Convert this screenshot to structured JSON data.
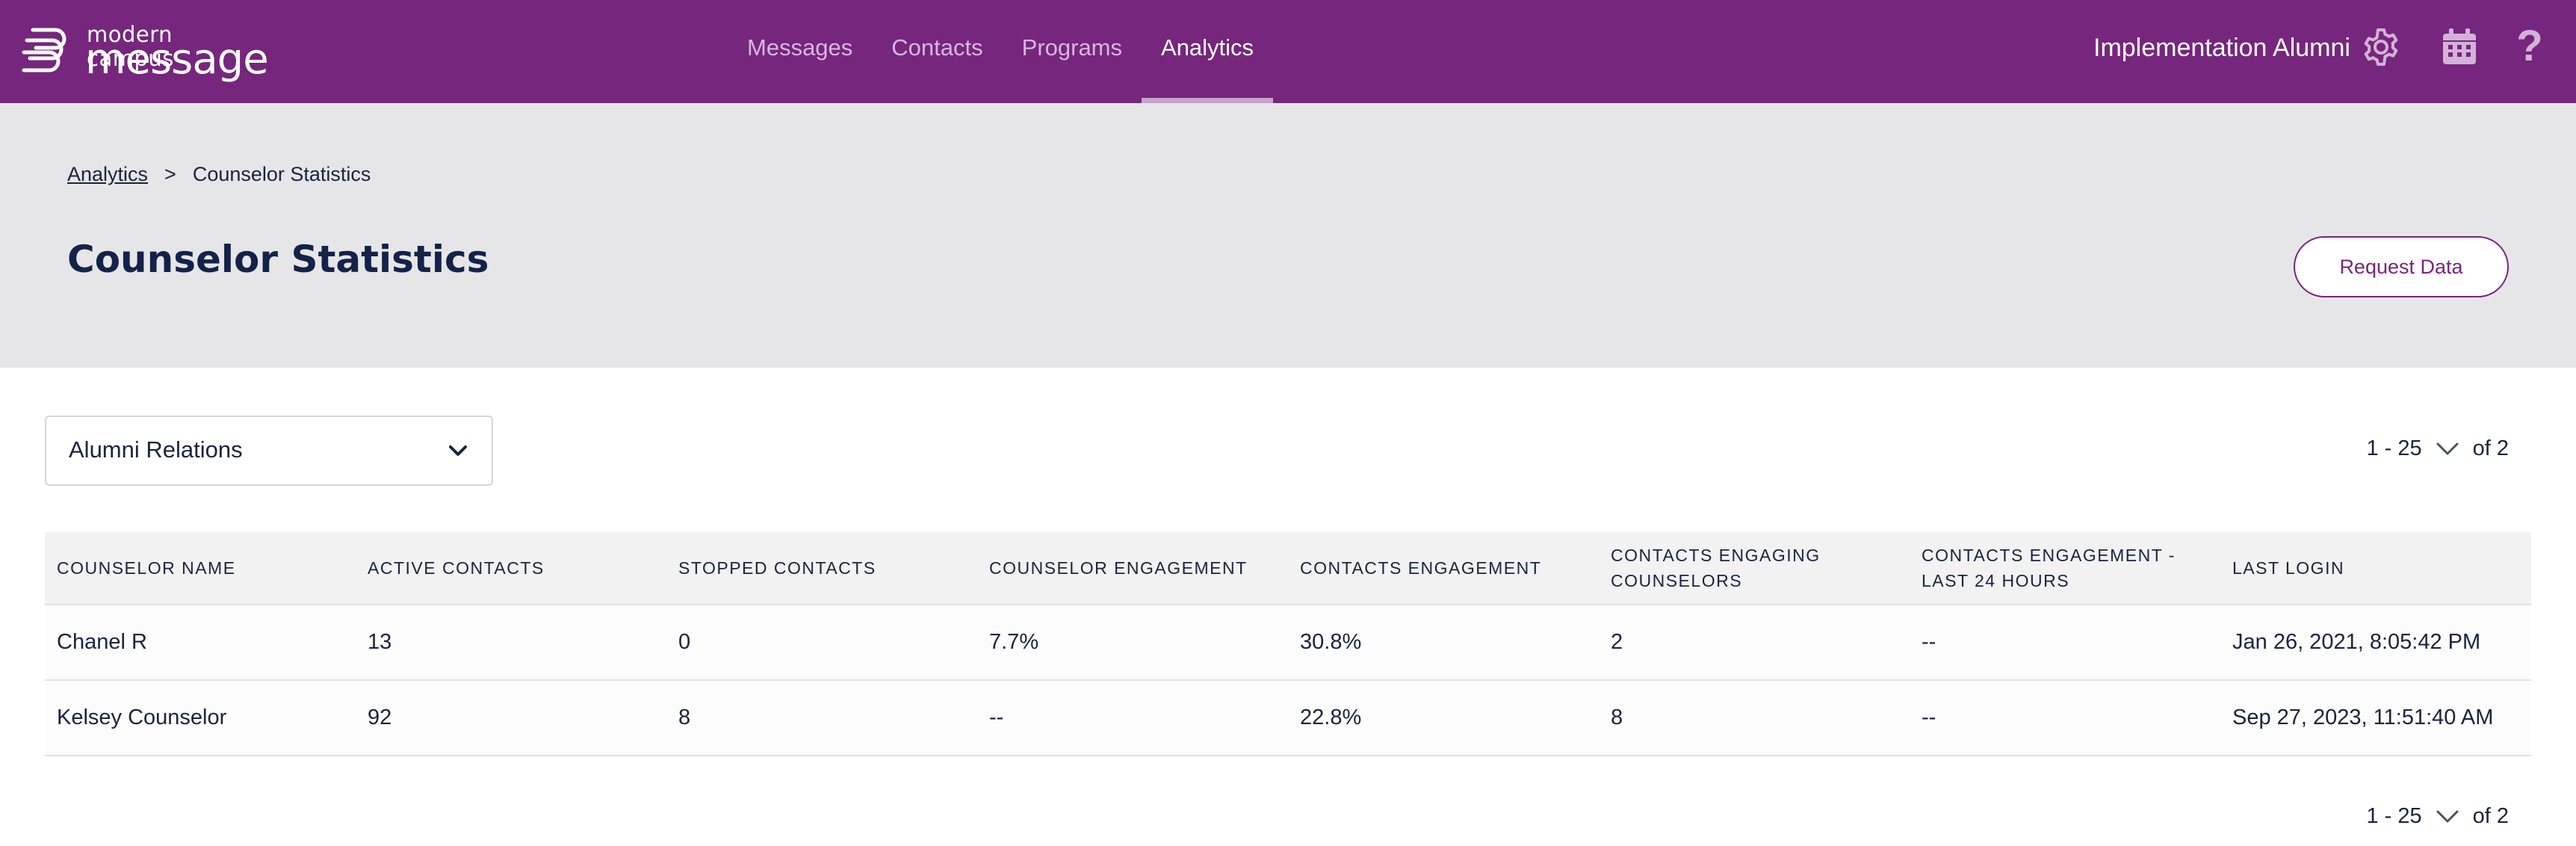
{
  "brand": {
    "line1": "modern campus",
    "line2": "message"
  },
  "nav": {
    "items": [
      {
        "label": "Messages"
      },
      {
        "label": "Contacts"
      },
      {
        "label": "Programs"
      },
      {
        "label": "Analytics",
        "active": true
      }
    ]
  },
  "header": {
    "org_name": "Implementation Alumni",
    "icons": [
      "gear-icon",
      "calendar-icon",
      "help-icon"
    ],
    "help_glyph": "?"
  },
  "breadcrumb": {
    "parent": "Analytics",
    "separator": ">",
    "current": "Counselor Statistics"
  },
  "page": {
    "title": "Counselor Statistics",
    "request_button": "Request Data"
  },
  "filter": {
    "selected": "Alumni Relations"
  },
  "pagination": {
    "range": "1 - 25",
    "of": "of 2"
  },
  "table": {
    "columns": [
      "COUNSELOR NAME",
      "ACTIVE CONTACTS",
      "STOPPED CONTACTS",
      "COUNSELOR ENGAGEMENT",
      "CONTACTS ENGAGEMENT",
      "CONTACTS ENGAGING COUNSELORS",
      "CONTACTS ENGAGEMENT - LAST 24 HOURS",
      "LAST LOGIN"
    ],
    "rows": [
      [
        "Chanel R",
        "13",
        "0",
        "7.7%",
        "30.8%",
        "2",
        "--",
        "Jan 26, 2021, 8:05:42 PM"
      ],
      [
        "Kelsey Counselor",
        "92",
        "8",
        "--",
        "22.8%",
        "8",
        "--",
        "Sep 27, 2023, 11:51:40 AM"
      ]
    ]
  },
  "colors": {
    "brand_purple": "#76267d",
    "header_band": "#e6e6e8",
    "text_navy": "#14224a"
  }
}
